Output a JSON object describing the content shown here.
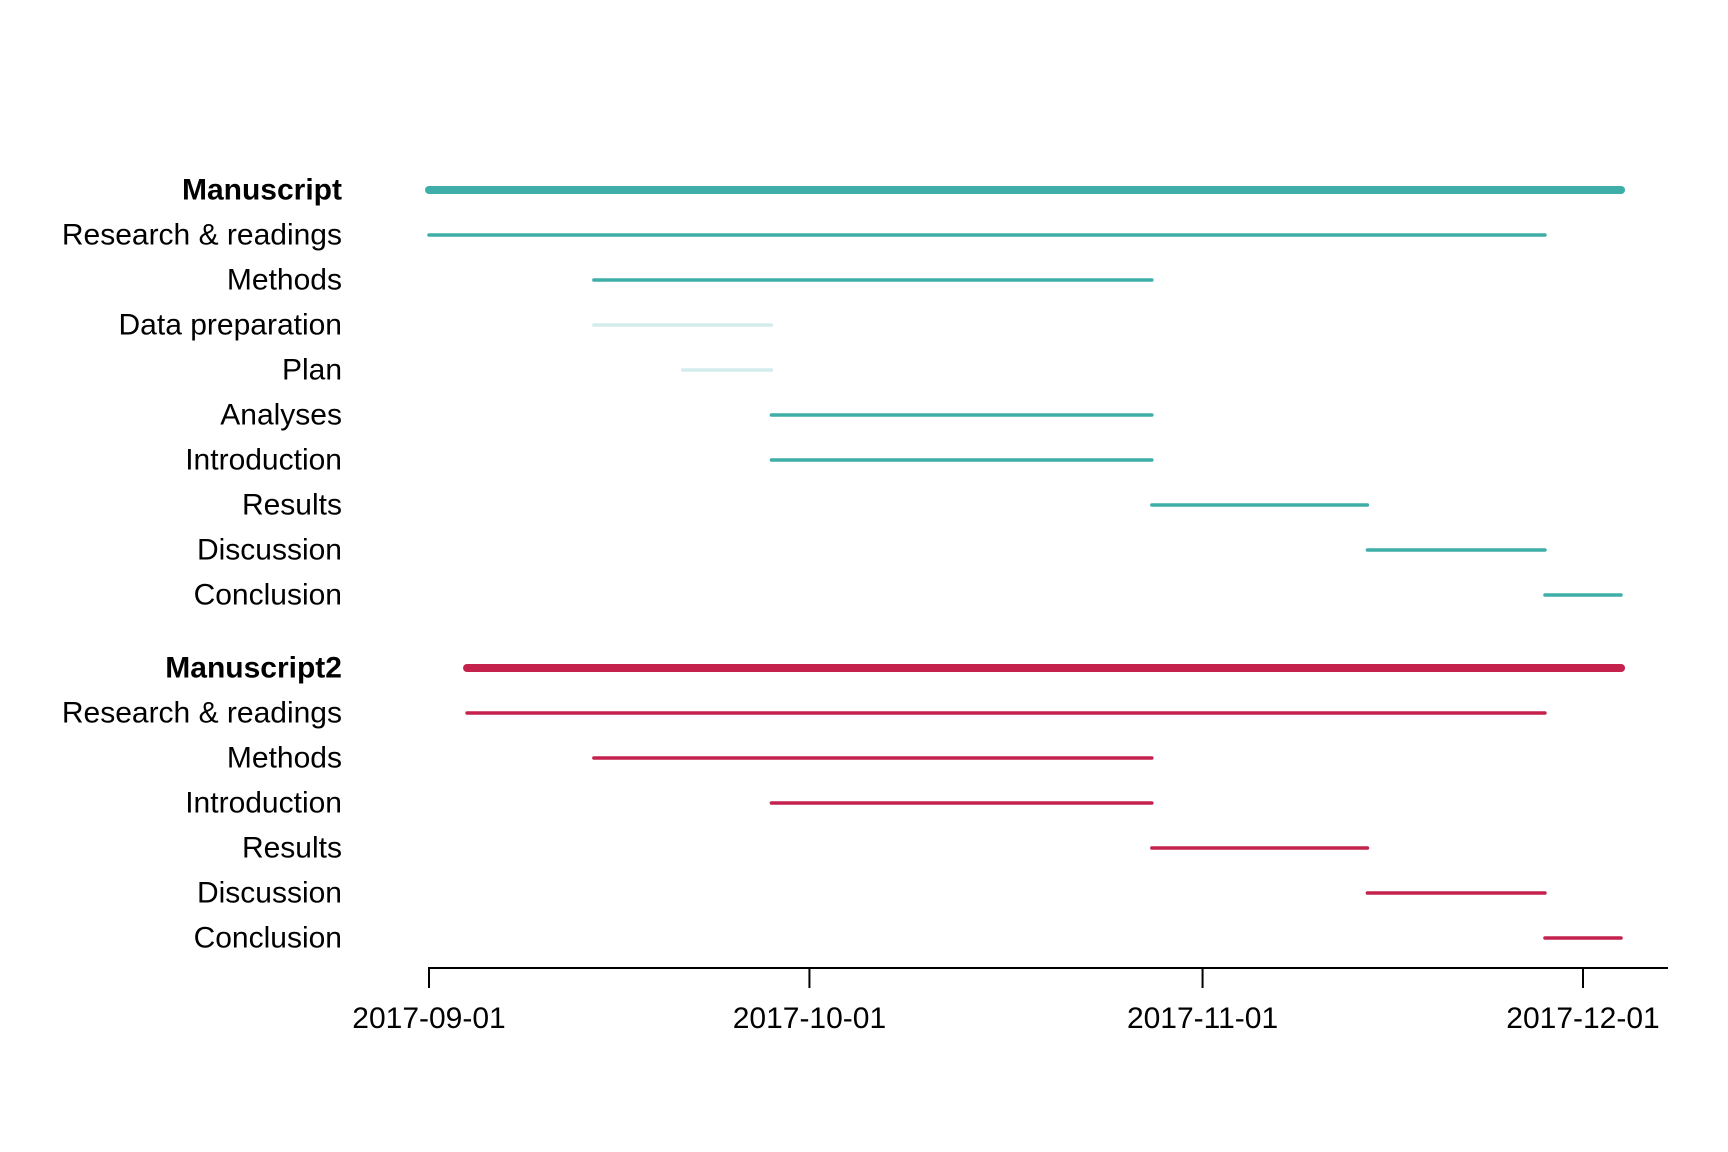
{
  "chart_data": {
    "type": "gantt",
    "title": "",
    "xlabel": "",
    "ylabel": "",
    "x_axis": {
      "type": "date",
      "range": [
        "2017-09-01",
        "2017-12-08"
      ],
      "ticks": [
        "2017-09-01",
        "2017-10-01",
        "2017-11-01",
        "2017-12-01"
      ]
    },
    "grid": false,
    "legend": "none",
    "groups": [
      {
        "name": "Manuscript",
        "color": "#3FAEA9",
        "start": "2017-09-01",
        "end": "2017-12-04",
        "tasks": [
          {
            "name": "Research & readings",
            "start": "2017-09-01",
            "end": "2017-11-28",
            "active": true
          },
          {
            "name": "Methods",
            "start": "2017-09-14",
            "end": "2017-10-28",
            "active": true
          },
          {
            "name": "Data preparation",
            "start": "2017-09-14",
            "end": "2017-09-28",
            "active": false
          },
          {
            "name": "Plan",
            "start": "2017-09-21",
            "end": "2017-09-28",
            "active": false
          },
          {
            "name": "Analyses",
            "start": "2017-09-28",
            "end": "2017-10-28",
            "active": true
          },
          {
            "name": "Introduction",
            "start": "2017-09-28",
            "end": "2017-10-28",
            "active": true
          },
          {
            "name": "Results",
            "start": "2017-10-28",
            "end": "2017-11-14",
            "active": true
          },
          {
            "name": "Discussion",
            "start": "2017-11-14",
            "end": "2017-11-28",
            "active": true
          },
          {
            "name": "Conclusion",
            "start": "2017-11-28",
            "end": "2017-12-04",
            "active": true
          }
        ]
      },
      {
        "name": "Manuscript2",
        "color": "#C4224D",
        "start": "2017-09-04",
        "end": "2017-12-04",
        "tasks": [
          {
            "name": "Research & readings",
            "start": "2017-09-04",
            "end": "2017-11-28",
            "active": true
          },
          {
            "name": "Methods",
            "start": "2017-09-14",
            "end": "2017-10-28",
            "active": true
          },
          {
            "name": "Introduction",
            "start": "2017-09-28",
            "end": "2017-10-28",
            "active": true
          },
          {
            "name": "Results",
            "start": "2017-10-28",
            "end": "2017-11-14",
            "active": true
          },
          {
            "name": "Discussion",
            "start": "2017-11-14",
            "end": "2017-11-28",
            "active": true
          },
          {
            "name": "Conclusion",
            "start": "2017-11-28",
            "end": "2017-12-04",
            "active": true
          }
        ]
      }
    ],
    "inactive_color": "#D4ECEB"
  }
}
